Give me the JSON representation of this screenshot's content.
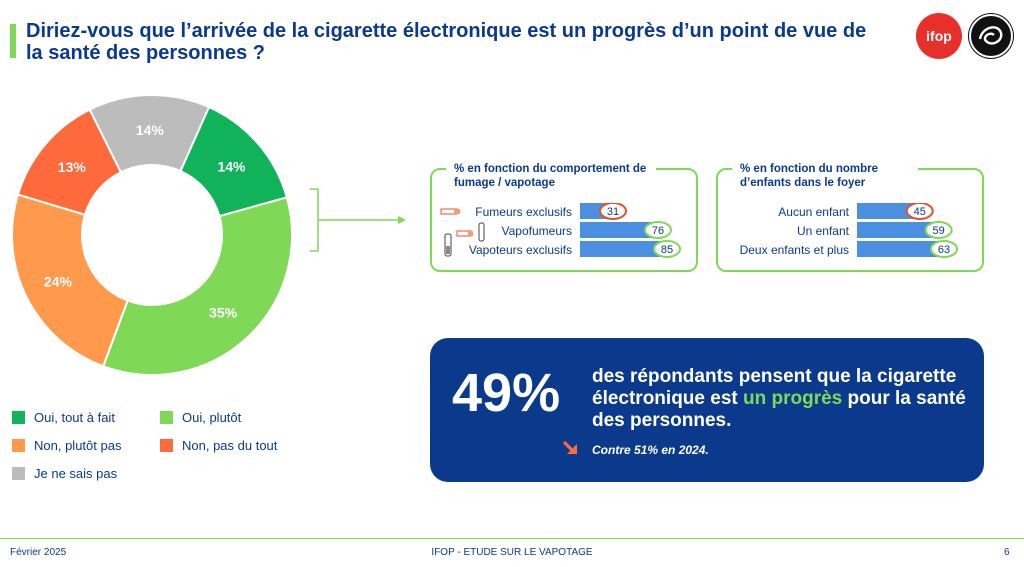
{
  "header": {
    "title": "Diriez-vous que l’arrivée de la cigarette électronique est un progrès d’un point de vue de la santé des personnes ?",
    "logo_text": "ifop"
  },
  "chart_data": [
    {
      "type": "pie",
      "variant": "donut",
      "slices": [
        {
          "label": "Oui, tout à fait",
          "value": 14,
          "display": "14%",
          "color": "#10b35a"
        },
        {
          "label": "Oui, plutôt",
          "value": 35,
          "display": "35%",
          "color": "#7fd957"
        },
        {
          "label": "Non, plutôt pas",
          "value": 24,
          "display": "24%",
          "color": "#ff9a4d"
        },
        {
          "label": "Non, pas du tout",
          "value": 13,
          "display": "13%",
          "color": "#ff6a3d"
        },
        {
          "label": "Je ne sais pas",
          "value": 14,
          "display": "14%",
          "color": "#bcbcbc"
        }
      ],
      "legend_placement": "bottom-left"
    },
    {
      "type": "bar",
      "title": "% en fonction du comportement de fumage / vapotage",
      "categories": [
        "Fumeurs exclusifs",
        "Vapofumeurs",
        "Vapoteurs exclusifs"
      ],
      "values": [
        31,
        76,
        85
      ],
      "highlight": [
        "red",
        "green",
        "green"
      ]
    },
    {
      "type": "bar",
      "title": "% en fonction du nombre d’enfants dans le foyer",
      "categories": [
        "Aucun enfant",
        "Un enfant",
        "Deux enfants et plus"
      ],
      "values": [
        45,
        59,
        63
      ],
      "highlight": [
        "red",
        "green",
        "green"
      ]
    }
  ],
  "legend": [
    {
      "label": "Oui, tout à fait",
      "color": "#10b35a"
    },
    {
      "label": "Oui, plutôt",
      "color": "#7fd957"
    },
    {
      "label": "Non, plutôt pas",
      "color": "#ff9a4d"
    },
    {
      "label": "Non, pas du tout",
      "color": "#ff6a3d"
    },
    {
      "label": "Je ne sais pas",
      "color": "#bcbcbc"
    }
  ],
  "callout": {
    "big_value": "49%",
    "text_before": "des répondants pensent que la cigarette électronique est ",
    "highlight": "un progrès",
    "text_after": " pour la santé des personnes.",
    "comparison": "Contre 51% en 2024.",
    "arrow_icon": "arrow-down-right-icon"
  },
  "footer": {
    "date": "Février 2025",
    "center": "IFOP - ETUDE SUR LE VAPOTAGE",
    "page": "6"
  },
  "colors": {
    "navy": "#0b3a8c",
    "accent_green": "#7fd957",
    "bar_blue": "#4a8fe0",
    "highlight_red": "#e8502a"
  }
}
